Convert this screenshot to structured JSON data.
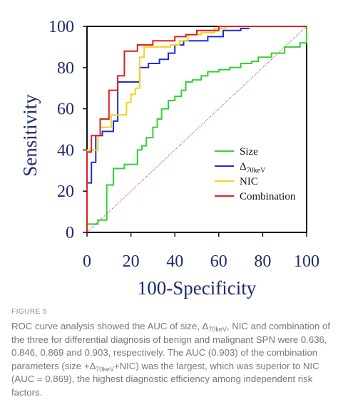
{
  "chart_data": {
    "type": "line",
    "xlabel": "100-Specificity",
    "ylabel": "Sensitivity",
    "xlim": [
      0,
      100
    ],
    "ylim": [
      0,
      100
    ],
    "x_ticks": [
      "0",
      "20",
      "40",
      "60",
      "80",
      "100"
    ],
    "y_ticks": [
      "0",
      "20",
      "40",
      "60",
      "80",
      "100"
    ],
    "legend_position": "lower-right",
    "series": [
      {
        "name": "Size",
        "color": "#32d232",
        "x": [
          0,
          0,
          5,
          5,
          9,
          9,
          12,
          12,
          17,
          17,
          23,
          23,
          25,
          25,
          27,
          27,
          30,
          30,
          32,
          32,
          34,
          34,
          37,
          37,
          40,
          40,
          43,
          43,
          45,
          45,
          48,
          48,
          52,
          52,
          55,
          55,
          60,
          60,
          65,
          65,
          70,
          70,
          75,
          75,
          78,
          78,
          84,
          84,
          90,
          90,
          97,
          97,
          100,
          100
        ],
        "y": [
          0,
          4,
          4,
          6,
          6,
          23,
          23,
          31,
          31,
          33,
          33,
          40,
          40,
          42,
          42,
          46,
          46,
          51,
          51,
          55,
          55,
          60,
          60,
          64,
          64,
          66,
          66,
          69,
          69,
          73,
          73,
          74,
          74,
          76,
          76,
          78,
          78,
          79,
          79,
          80,
          80,
          82,
          82,
          83,
          83,
          85,
          85,
          87,
          87,
          90,
          90,
          92,
          92,
          100
        ]
      },
      {
        "name": "Δ70keV",
        "color": "#1a2fd6",
        "x": [
          0,
          0,
          2,
          2,
          4,
          4,
          7,
          7,
          12,
          12,
          14,
          14,
          24,
          24,
          28,
          28,
          33,
          33,
          37,
          37,
          40,
          40,
          44,
          44,
          55,
          55,
          62,
          62,
          70,
          70,
          74
        ],
        "y": [
          0,
          24,
          24,
          34,
          34,
          47,
          47,
          49,
          49,
          54,
          54,
          73,
          73,
          80,
          80,
          82,
          82,
          84,
          84,
          87,
          87,
          91,
          91,
          93,
          93,
          95,
          95,
          98,
          98,
          99,
          99
        ]
      },
      {
        "name": "NIC",
        "color": "#f2d31e",
        "x": [
          0,
          0,
          5,
          5,
          6,
          6,
          11,
          11,
          18,
          18,
          20,
          20,
          22,
          22,
          24,
          24,
          26,
          26,
          38,
          38,
          42,
          42,
          46,
          46,
          52,
          52,
          58,
          58,
          63,
          63,
          100
        ],
        "y": [
          0,
          40,
          40,
          47,
          47,
          51,
          51,
          57,
          57,
          63,
          63,
          67,
          67,
          70,
          70,
          85,
          85,
          90,
          90,
          91,
          91,
          93,
          93,
          96,
          96,
          97,
          97,
          99,
          99,
          100,
          100
        ]
      },
      {
        "name": "Combination",
        "color": "#e0201f",
        "x": [
          0,
          0,
          2,
          2,
          6,
          6,
          10,
          10,
          14,
          14,
          17,
          17,
          23,
          23,
          30,
          30,
          40,
          40,
          45,
          45,
          50,
          50,
          60,
          60,
          100
        ],
        "y": [
          0,
          39,
          39,
          47,
          47,
          55,
          55,
          69,
          69,
          76,
          76,
          88,
          88,
          91,
          91,
          93,
          93,
          95,
          95,
          96,
          96,
          98,
          98,
          100,
          100
        ]
      }
    ]
  },
  "caption": {
    "figure_label": "FIGURE 5",
    "part1": "ROC curve analysis showed the AUC of size, Δ",
    "sub1": "70keV",
    "part2": ", NIC and combination of the three for differential diagnosis of benign and malignant SPN were 0.636, 0.846, 0.869 and 0.903, respectively. The AUC (0.903) of the combination parameters (size +Δ",
    "sub2": "70keV",
    "part3": "+NIC) was the largest, which was superior to NIC (AUC = 0.869), the highest diagnostic efficiency among independent risk factors."
  },
  "colors": {
    "axis_text": "#1f2a6e",
    "reference_line": "#c8453c"
  }
}
